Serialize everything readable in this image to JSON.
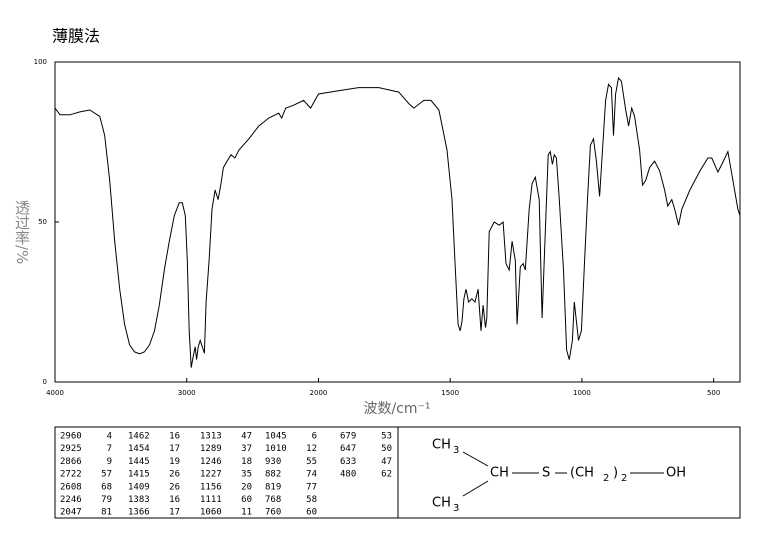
{
  "chart_data": {
    "type": "line",
    "title": "薄膜法",
    "xlabel": "波数/cm⁻¹",
    "ylabel": "透过率/%",
    "xlim": [
      4000,
      400
    ],
    "ylim": [
      0,
      100
    ],
    "x_scale_break": 2000,
    "xticks": [
      4000,
      3000,
      2000,
      1500,
      1000,
      500
    ],
    "yticks": [
      0,
      50,
      100
    ],
    "color": "#000000",
    "x": [
      4000,
      3962,
      3887,
      3811,
      3736,
      3660,
      3623,
      3585,
      3547,
      3509,
      3472,
      3434,
      3396,
      3358,
      3321,
      3283,
      3245,
      3208,
      3170,
      3132,
      3094,
      3057,
      3034,
      3011,
      2996,
      2981,
      2966,
      2951,
      2936,
      2925,
      2913,
      2898,
      2866,
      2853,
      2830,
      2808,
      2785,
      2762,
      2740,
      2722,
      2694,
      2664,
      2634,
      2604,
      2528,
      2453,
      2377,
      2302,
      2279,
      2249,
      2189,
      2113,
      2060,
      2000,
      1924,
      1848,
      1771,
      1695,
      1657,
      1638,
      1600,
      1573,
      1543,
      1512,
      1493,
      1482,
      1470,
      1462,
      1455,
      1448,
      1440,
      1430,
      1418,
      1406,
      1394,
      1383,
      1375,
      1366,
      1361,
      1352,
      1333,
      1314,
      1299,
      1288,
      1276,
      1265,
      1253,
      1246,
      1234,
      1223,
      1215,
      1200,
      1189,
      1177,
      1162,
      1151,
      1139,
      1128,
      1120,
      1112,
      1105,
      1097,
      1086,
      1070,
      1058,
      1048,
      1036,
      1029,
      1021,
      1013,
      1002,
      990,
      979,
      968,
      956,
      945,
      933,
      922,
      910,
      899,
      888,
      880,
      872,
      861,
      850,
      834,
      823,
      811,
      800,
      781,
      770,
      758,
      743,
      724,
      705,
      686,
      674,
      659,
      648,
      633,
      621,
      590,
      552,
      522,
      507,
      484,
      469,
      446,
      427,
      408,
      400
    ],
    "values": [
      85.6,
      83.5,
      83.5,
      84.4,
      85,
      83,
      77,
      63,
      44,
      29,
      18,
      11.6,
      9.4,
      8.8,
      9.4,
      11.6,
      16,
      24,
      35,
      44,
      52,
      56,
      56,
      52,
      38,
      16,
      4.5,
      8,
      11,
      7,
      11,
      13,
      9,
      25,
      38,
      54,
      60,
      57,
      62,
      67,
      69,
      71,
      70,
      72.5,
      76,
      80,
      82.5,
      84,
      82.5,
      85.6,
      86.5,
      88,
      85.6,
      90,
      91,
      92,
      92,
      90.6,
      87,
      85.6,
      88,
      88,
      85,
      72.5,
      57,
      38,
      18,
      16,
      19,
      26,
      29,
      25,
      26,
      25,
      29,
      16,
      24,
      17,
      20,
      47,
      50,
      49,
      50,
      37,
      35,
      44,
      38,
      18,
      36,
      37,
      35,
      54,
      62,
      64,
      57,
      20,
      47,
      71,
      72,
      68,
      71,
      70,
      57,
      35,
      10,
      7,
      13,
      25,
      19,
      13,
      16,
      38,
      57,
      74,
      76,
      69,
      58,
      72.5,
      88,
      93,
      92,
      77,
      90,
      95,
      94,
      85,
      80,
      85.6,
      83,
      72.5,
      61.5,
      63,
      67,
      69,
      66,
      60,
      55,
      57,
      54,
      49,
      54,
      60,
      66,
      70,
      70,
      65.6,
      68,
      72,
      63,
      54,
      52
    ]
  },
  "peak_table": {
    "columns": [
      [
        [
          2960,
          4
        ],
        [
          2925,
          7
        ],
        [
          2866,
          9
        ],
        [
          2722,
          57
        ],
        [
          2608,
          68
        ],
        [
          2246,
          79
        ],
        [
          2047,
          81
        ]
      ],
      [
        [
          1462,
          16
        ],
        [
          1454,
          17
        ],
        [
          1445,
          19
        ],
        [
          1415,
          26
        ],
        [
          1409,
          26
        ],
        [
          1383,
          16
        ],
        [
          1366,
          17
        ]
      ],
      [
        [
          1313,
          47
        ],
        [
          1289,
          37
        ],
        [
          1246,
          18
        ],
        [
          1227,
          35
        ],
        [
          1156,
          20
        ],
        [
          1111,
          60
        ],
        [
          1060,
          11
        ]
      ],
      [
        [
          1045,
          6
        ],
        [
          1010,
          12
        ],
        [
          930,
          55
        ],
        [
          882,
          74
        ],
        [
          819,
          77
        ],
        [
          768,
          58
        ],
        [
          760,
          60
        ]
      ],
      [
        [
          679,
          53
        ],
        [
          647,
          50
        ],
        [
          633,
          47
        ],
        [
          480,
          62
        ]
      ]
    ]
  },
  "structure": {
    "top": [
      "CH",
      "3"
    ],
    "middle": [
      "CH",
      "S",
      "(CH",
      "2",
      ")",
      "2",
      "OH"
    ],
    "bottom": [
      "CH",
      "3"
    ]
  }
}
